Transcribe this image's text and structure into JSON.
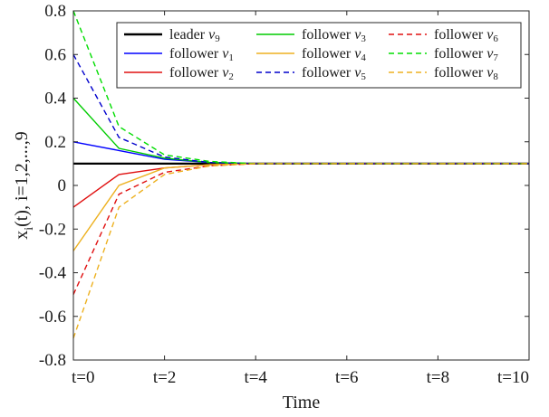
{
  "chart_data": {
    "type": "line",
    "title": "",
    "xlabel": "Time",
    "ylabel": "x_i(t), i=1,2,...,9",
    "xlim": [
      0,
      10
    ],
    "ylim": [
      -0.8,
      0.8
    ],
    "x": [
      0,
      1,
      2,
      3,
      4,
      5,
      6,
      7,
      8,
      9,
      10
    ],
    "x_ticks": [
      0,
      2,
      4,
      6,
      8,
      10
    ],
    "x_tick_labels": [
      "t=0",
      "t=2",
      "t=4",
      "t=6",
      "t=8",
      "t=10"
    ],
    "y_ticks": [
      -0.8,
      -0.6,
      -0.4,
      -0.2,
      0,
      0.2,
      0.4,
      0.6,
      0.8
    ],
    "y_tick_labels": [
      "-0.8",
      "-0.6",
      "-0.4",
      "-0.2",
      "0",
      "0.2",
      "0.4",
      "0.6",
      "0.8"
    ],
    "grid": false,
    "legend_position": "top-right",
    "series": [
      {
        "name": "leader",
        "symbol": "v",
        "sub": "9",
        "color": "#000000",
        "dash": "solid",
        "values": [
          0.1,
          0.1,
          0.1,
          0.1,
          0.1,
          0.1,
          0.1,
          0.1,
          0.1,
          0.1,
          0.1
        ]
      },
      {
        "name": "follower",
        "symbol": "v",
        "sub": "1",
        "color": "#0000ff",
        "dash": "solid",
        "values": [
          0.2,
          0.16,
          0.12,
          0.105,
          0.1,
          0.1,
          0.1,
          0.1,
          0.1,
          0.1,
          0.1
        ]
      },
      {
        "name": "follower",
        "symbol": "v",
        "sub": "2",
        "color": "#e01010",
        "dash": "solid",
        "values": [
          -0.1,
          0.05,
          0.08,
          0.095,
          0.1,
          0.1,
          0.1,
          0.1,
          0.1,
          0.1,
          0.1
        ]
      },
      {
        "name": "follower",
        "symbol": "v",
        "sub": "3",
        "color": "#00cc00",
        "dash": "solid",
        "values": [
          0.4,
          0.17,
          0.125,
          0.105,
          0.1,
          0.1,
          0.1,
          0.1,
          0.1,
          0.1,
          0.1
        ]
      },
      {
        "name": "follower",
        "symbol": "v",
        "sub": "4",
        "color": "#edb120",
        "dash": "solid",
        "values": [
          -0.3,
          0.0,
          0.08,
          0.095,
          0.1,
          0.1,
          0.1,
          0.1,
          0.1,
          0.1,
          0.1
        ]
      },
      {
        "name": "follower",
        "symbol": "v",
        "sub": "5",
        "color": "#0000cc",
        "dash": "dashed",
        "values": [
          0.6,
          0.22,
          0.13,
          0.105,
          0.1,
          0.1,
          0.1,
          0.1,
          0.1,
          0.1,
          0.1
        ]
      },
      {
        "name": "follower",
        "symbol": "v",
        "sub": "6",
        "color": "#e01010",
        "dash": "dashed",
        "values": [
          -0.5,
          -0.04,
          0.06,
          0.09,
          0.1,
          0.1,
          0.1,
          0.1,
          0.1,
          0.1,
          0.1
        ]
      },
      {
        "name": "follower",
        "symbol": "v",
        "sub": "7",
        "color": "#00dd00",
        "dash": "dashed",
        "values": [
          0.8,
          0.27,
          0.14,
          0.11,
          0.1,
          0.1,
          0.1,
          0.1,
          0.1,
          0.1,
          0.1
        ]
      },
      {
        "name": "follower",
        "symbol": "v",
        "sub": "8",
        "color": "#edb120",
        "dash": "dashed",
        "values": [
          -0.7,
          -0.1,
          0.05,
          0.09,
          0.1,
          0.1,
          0.1,
          0.1,
          0.1,
          0.1,
          0.1
        ]
      }
    ]
  }
}
